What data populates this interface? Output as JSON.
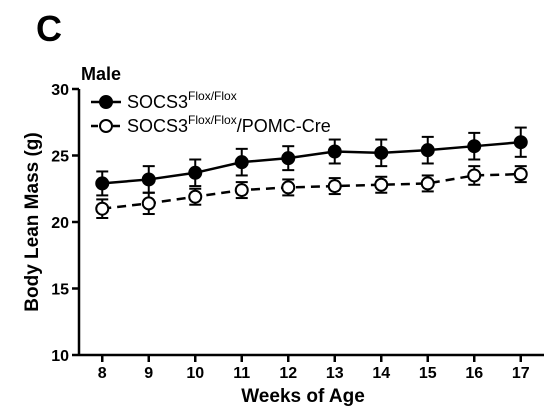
{
  "panel_label": "C",
  "chart_data": {
    "type": "line",
    "subtitle": "Male",
    "xlabel": "Weeks of Age",
    "ylabel": "Body Lean Mass (g)",
    "x": [
      8,
      9,
      10,
      11,
      12,
      13,
      14,
      15,
      16,
      17
    ],
    "xlim": [
      7.5,
      17.5
    ],
    "ylim": [
      10,
      30
    ],
    "yticks": [
      10,
      15,
      20,
      25,
      30
    ],
    "grid": false,
    "legend_position": "top-left",
    "series": [
      {
        "name_base": "SOCS3",
        "name_sup": "Flox/Flox",
        "name_suffix": "",
        "marker": "filled-circle",
        "line_style": "solid",
        "y": [
          22.9,
          23.2,
          23.7,
          24.5,
          24.8,
          25.3,
          25.2,
          25.4,
          25.7,
          26.0
        ],
        "err": [
          0.9,
          1.0,
          1.0,
          1.0,
          0.9,
          0.9,
          1.0,
          1.0,
          1.0,
          1.1
        ]
      },
      {
        "name_base": "SOCS3",
        "name_sup": "Flox/Flox",
        "name_suffix": "/POMC-Cre",
        "marker": "open-circle",
        "line_style": "dashed",
        "y": [
          21.0,
          21.4,
          21.9,
          22.4,
          22.6,
          22.7,
          22.8,
          22.9,
          23.5,
          23.6
        ],
        "err": [
          0.7,
          0.8,
          0.6,
          0.6,
          0.6,
          0.6,
          0.6,
          0.6,
          0.7,
          0.6
        ]
      }
    ]
  }
}
